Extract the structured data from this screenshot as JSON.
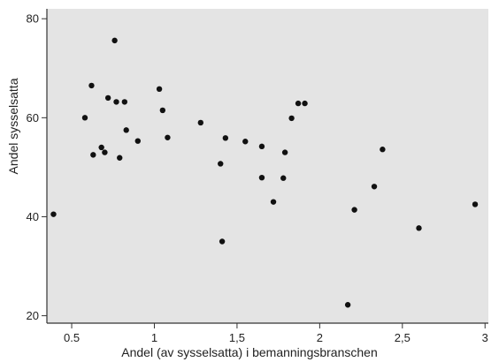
{
  "colors": {
    "plot_background": "#e4e4e4",
    "axis": "#333333",
    "point": "#111111"
  },
  "chart_data": {
    "type": "scatter",
    "title": "",
    "xlabel": "Andel (av sysselsatta) i bemanningsbranschen",
    "ylabel": "Andel sysselsatta",
    "xlim": [
      0.35,
      3.02
    ],
    "ylim": [
      18.5,
      82
    ],
    "x_ticks": [
      0.5,
      1,
      1.5,
      2,
      2.5,
      3
    ],
    "x_tick_labels": [
      "0.5",
      "1",
      "1,5",
      "2",
      "2,5",
      "3"
    ],
    "y_ticks": [
      20,
      40,
      60,
      80
    ],
    "y_tick_labels": [
      "20",
      "40",
      "60",
      "80"
    ],
    "grid": false,
    "legend": "none",
    "points": [
      {
        "x": 0.39,
        "y": 40.5
      },
      {
        "x": 0.58,
        "y": 60.0
      },
      {
        "x": 0.62,
        "y": 66.5
      },
      {
        "x": 0.63,
        "y": 52.5
      },
      {
        "x": 0.68,
        "y": 54.0
      },
      {
        "x": 0.7,
        "y": 53.0
      },
      {
        "x": 0.72,
        "y": 64.0
      },
      {
        "x": 0.76,
        "y": 75.6
      },
      {
        "x": 0.77,
        "y": 63.2
      },
      {
        "x": 0.79,
        "y": 51.9
      },
      {
        "x": 0.82,
        "y": 63.2
      },
      {
        "x": 0.83,
        "y": 57.5
      },
      {
        "x": 0.9,
        "y": 55.3
      },
      {
        "x": 1.03,
        "y": 65.8
      },
      {
        "x": 1.05,
        "y": 61.5
      },
      {
        "x": 1.08,
        "y": 56.0
      },
      {
        "x": 1.28,
        "y": 59.0
      },
      {
        "x": 1.4,
        "y": 50.7
      },
      {
        "x": 1.41,
        "y": 35.0
      },
      {
        "x": 1.43,
        "y": 55.9
      },
      {
        "x": 1.55,
        "y": 55.2
      },
      {
        "x": 1.65,
        "y": 54.2
      },
      {
        "x": 1.65,
        "y": 47.9
      },
      {
        "x": 1.72,
        "y": 43.0
      },
      {
        "x": 1.78,
        "y": 47.8
      },
      {
        "x": 1.79,
        "y": 53.0
      },
      {
        "x": 1.83,
        "y": 59.9
      },
      {
        "x": 1.87,
        "y": 62.9
      },
      {
        "x": 1.91,
        "y": 62.9
      },
      {
        "x": 2.17,
        "y": 22.2
      },
      {
        "x": 2.21,
        "y": 41.4
      },
      {
        "x": 2.33,
        "y": 46.1
      },
      {
        "x": 2.38,
        "y": 53.6
      },
      {
        "x": 2.6,
        "y": 37.7
      },
      {
        "x": 2.94,
        "y": 42.5
      }
    ]
  }
}
